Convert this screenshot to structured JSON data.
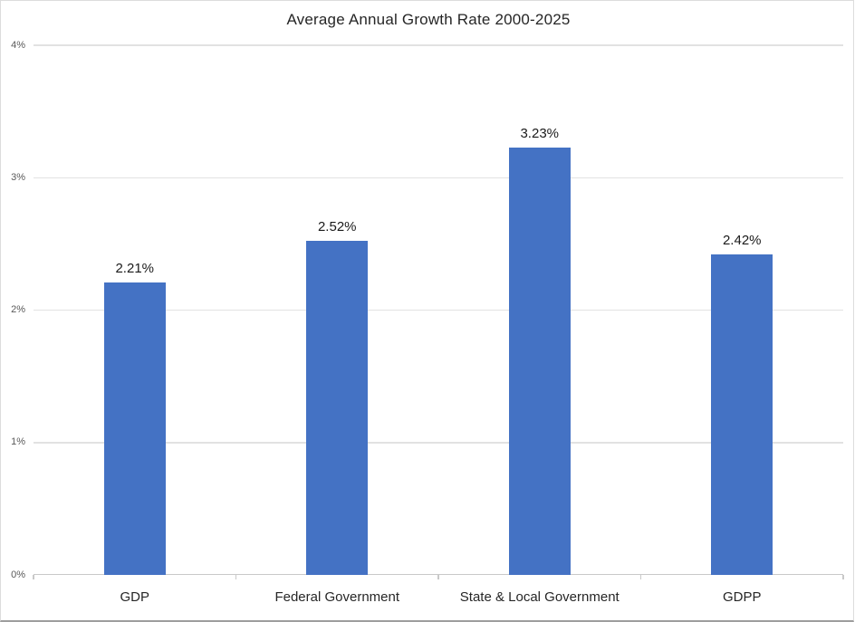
{
  "title": "Average Annual Growth Rate 2000-2025",
  "chart_data": {
    "type": "bar",
    "title": "Average Annual Growth Rate 2000-2025",
    "categories": [
      "GDP",
      "Federal Government",
      "State & Local Government",
      "GDPP"
    ],
    "values": [
      2.21,
      2.52,
      3.23,
      2.42
    ],
    "data_labels": [
      "2.21%",
      "2.52%",
      "3.23%",
      "2.42%"
    ],
    "xlabel": "",
    "ylabel": "",
    "ylim": [
      0,
      4
    ],
    "yticks": [
      0,
      1,
      2,
      3,
      4
    ],
    "ytick_labels": [
      "0%",
      "1%",
      "2%",
      "3%",
      "4%"
    ],
    "grid": true,
    "legend": false
  },
  "colors": {
    "bar": "#4472C4",
    "gridline": "#e2e2e2",
    "axis_line": "#c9c9c9",
    "title_text": "#262626",
    "axis_tick_text": "#595959",
    "category_text": "#262626",
    "data_label_text": "#1a1a1a",
    "chart_border": "#dcdcdc",
    "chart_border_bottom": "#9e9e9e",
    "background": "#ffffff"
  }
}
